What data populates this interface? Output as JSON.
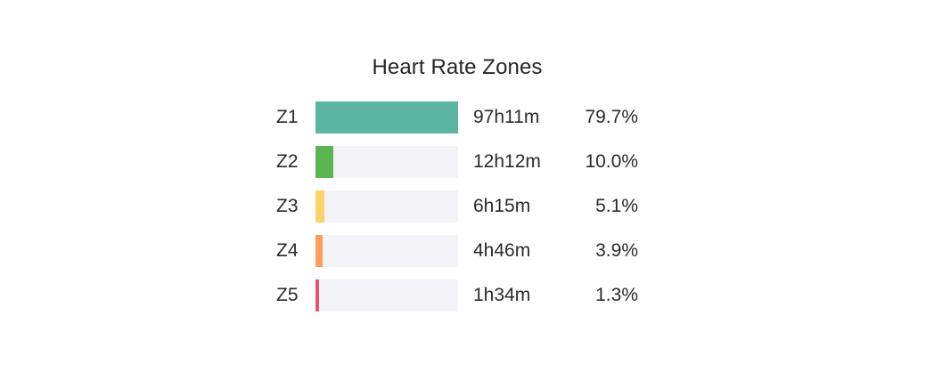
{
  "chart_data": {
    "type": "bar",
    "orientation": "horizontal",
    "title": "Heart Rate Zones",
    "categories": [
      "Z1",
      "Z2",
      "Z3",
      "Z4",
      "Z5"
    ],
    "durations": [
      "97h11m",
      "12h12m",
      "6h15m",
      "4h46m",
      "1h34m"
    ],
    "percent_labels": [
      "79.7%",
      "10.0%",
      "5.1%",
      "3.9%",
      "1.3%"
    ],
    "values": [
      79.7,
      10.0,
      5.1,
      3.9,
      1.3
    ],
    "colors": [
      "#5bb5a0",
      "#5ab552",
      "#fbd46b",
      "#f9a05c",
      "#e4546f"
    ],
    "track_color": "#f4f4f8",
    "xlim": [
      0,
      79.7
    ],
    "grid": false,
    "legend": "none"
  }
}
